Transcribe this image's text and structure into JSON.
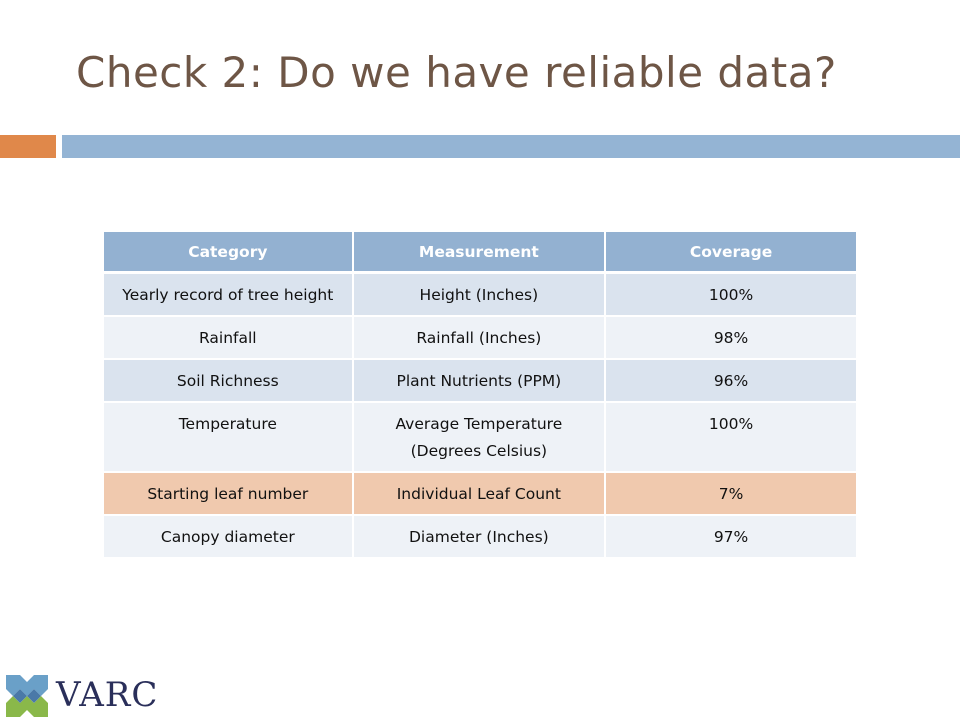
{
  "slide": {
    "title": "Check 2: Do we have reliable data?"
  },
  "table": {
    "headers": [
      "Category",
      "Measurement",
      "Coverage"
    ],
    "rows": [
      {
        "category": "Yearly record of tree height",
        "measurement": "Height (Inches)",
        "coverage": "100%"
      },
      {
        "category": "Rainfall",
        "measurement": "Rainfall (Inches)",
        "coverage": "98%"
      },
      {
        "category": "Soil Richness",
        "measurement": "Plant Nutrients (PPM)",
        "coverage": "96%"
      },
      {
        "category": "Temperature",
        "measurement": "Average Temperature (Degrees Celsius)",
        "coverage": "100%"
      },
      {
        "category": "Starting leaf number",
        "measurement": "Individual Leaf Count",
        "coverage": "7%"
      },
      {
        "category": "Canopy diameter",
        "measurement": "Diameter (Inches)",
        "coverage": "97%"
      }
    ],
    "highlight_color": "#f0c9ae",
    "header_color": "#93b1d1"
  },
  "logo": {
    "text": "VARC",
    "icon": "varc-logo-icon"
  },
  "colors": {
    "title": "#6e5646",
    "accent": "#e0884a",
    "bar": "#94b4d4"
  }
}
